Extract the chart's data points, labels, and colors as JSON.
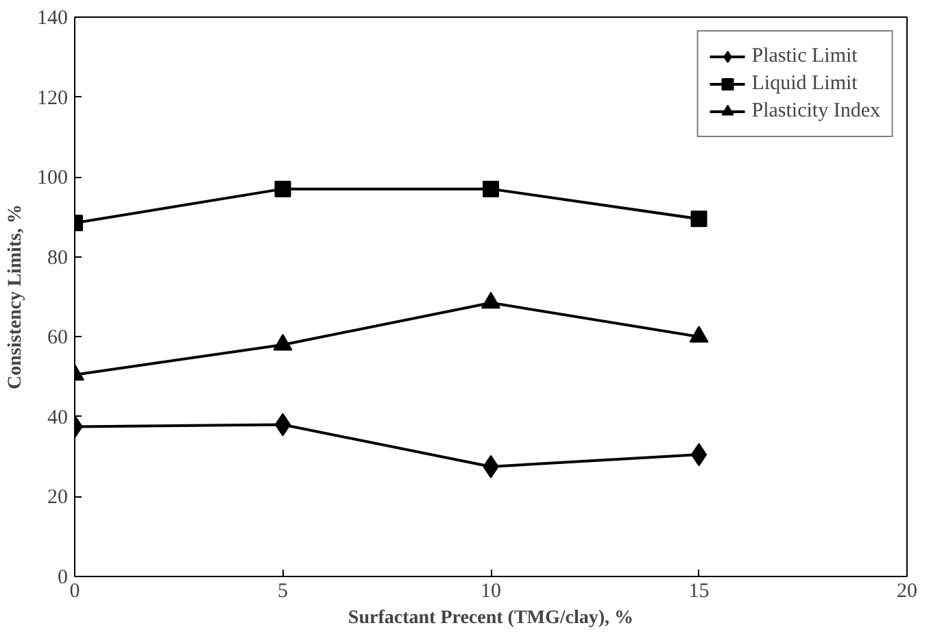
{
  "chart_data": {
    "type": "line",
    "xlabel": "Surfactant Precent (TMG/clay), %",
    "ylabel": "Consistency Limits, %",
    "x": [
      0,
      5,
      10,
      15
    ],
    "xlim": [
      0,
      20
    ],
    "xticks": [
      0,
      5,
      10,
      15,
      20
    ],
    "ylim": [
      0,
      140
    ],
    "yticks": [
      0,
      20,
      40,
      60,
      80,
      100,
      120,
      140
    ],
    "grid": false,
    "legend": "top right",
    "line_style": "solid",
    "series": [
      {
        "name": "Plastic Limit",
        "color": "#000000",
        "marker": "diamond",
        "values": [
          37.5,
          38,
          27.5,
          30.5
        ]
      },
      {
        "name": "Liquid Limit",
        "color": "#000000",
        "marker": "square",
        "values": [
          88.5,
          97,
          97,
          89.5
        ]
      },
      {
        "name": "Plasticity Index",
        "color": "#000000",
        "marker": "triangle",
        "values": [
          50.5,
          58,
          68.5,
          60
        ]
      }
    ]
  }
}
